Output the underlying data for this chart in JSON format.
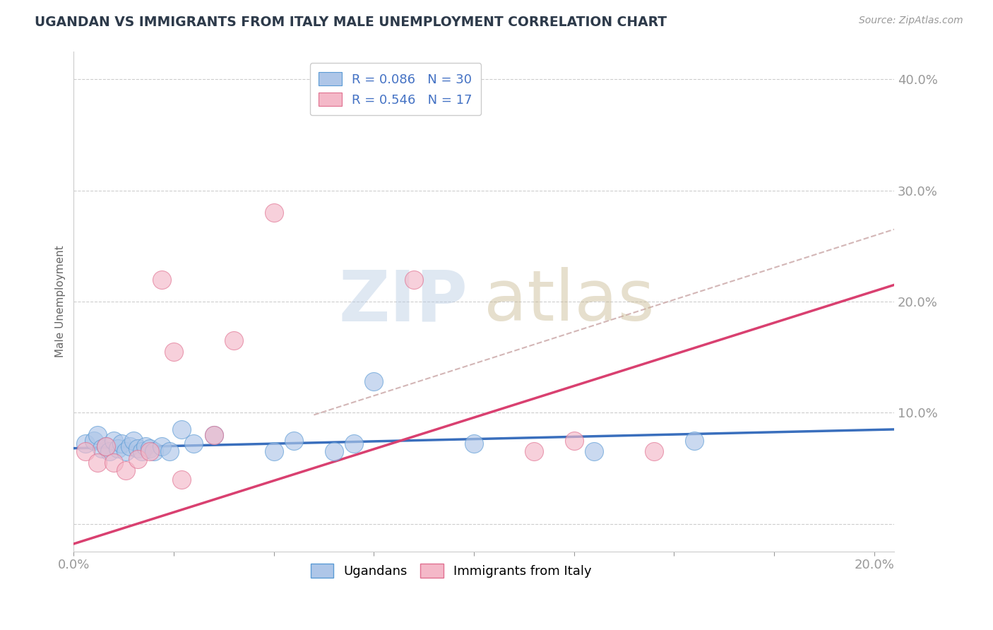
{
  "title": "UGANDAN VS IMMIGRANTS FROM ITALY MALE UNEMPLOYMENT CORRELATION CHART",
  "source": "Source: ZipAtlas.com",
  "ylabel": "Male Unemployment",
  "legend_labels": [
    "Ugandans",
    "Immigrants from Italy"
  ],
  "r_ugandan": 0.086,
  "n_ugandan": 30,
  "r_italy": 0.546,
  "n_italy": 17,
  "blue_scatter_color": "#aec6e8",
  "blue_scatter_edge": "#5b9bd5",
  "pink_scatter_color": "#f4b8c8",
  "pink_scatter_edge": "#e07090",
  "blue_line_color": "#3a6fbd",
  "pink_line_color": "#d94070",
  "dash_line_color": "#ccaaaa",
  "axis_tick_color": "#4472c4",
  "title_color": "#2d3a4a",
  "xlim": [
    0.0,
    0.205
  ],
  "ylim": [
    -0.025,
    0.425
  ],
  "xtick_vals": [
    0.0,
    0.025,
    0.05,
    0.075,
    0.1,
    0.125,
    0.15,
    0.175,
    0.2
  ],
  "ytick_vals": [
    0.0,
    0.1,
    0.2,
    0.3,
    0.4
  ],
  "ugandan_x": [
    0.003,
    0.005,
    0.006,
    0.007,
    0.008,
    0.009,
    0.01,
    0.011,
    0.012,
    0.013,
    0.014,
    0.015,
    0.016,
    0.017,
    0.018,
    0.019,
    0.02,
    0.022,
    0.024,
    0.027,
    0.03,
    0.035,
    0.05,
    0.055,
    0.065,
    0.07,
    0.075,
    0.1,
    0.13,
    0.155
  ],
  "ugandan_y": [
    0.072,
    0.075,
    0.08,
    0.068,
    0.07,
    0.065,
    0.075,
    0.068,
    0.072,
    0.065,
    0.07,
    0.075,
    0.068,
    0.065,
    0.07,
    0.068,
    0.065,
    0.07,
    0.065,
    0.085,
    0.072,
    0.08,
    0.065,
    0.075,
    0.065,
    0.072,
    0.128,
    0.072,
    0.065,
    0.075
  ],
  "italy_x": [
    0.003,
    0.006,
    0.008,
    0.01,
    0.013,
    0.016,
    0.019,
    0.022,
    0.025,
    0.027,
    0.035,
    0.04,
    0.05,
    0.085,
    0.115,
    0.125,
    0.145
  ],
  "italy_y": [
    0.065,
    0.055,
    0.07,
    0.055,
    0.048,
    0.058,
    0.065,
    0.22,
    0.155,
    0.04,
    0.08,
    0.165,
    0.28,
    0.22,
    0.065,
    0.075,
    0.065
  ],
  "blue_line_x0": 0.0,
  "blue_line_x1": 0.205,
  "blue_line_y0": 0.068,
  "blue_line_y1": 0.085,
  "pink_line_x0": 0.0,
  "pink_line_x1": 0.205,
  "pink_line_y0": -0.018,
  "pink_line_y1": 0.215,
  "dash_line_x0": 0.06,
  "dash_line_x1": 0.205,
  "dash_line_y0": 0.098,
  "dash_line_y1": 0.265,
  "background_color": "#ffffff",
  "grid_color": "#c8c8c8"
}
